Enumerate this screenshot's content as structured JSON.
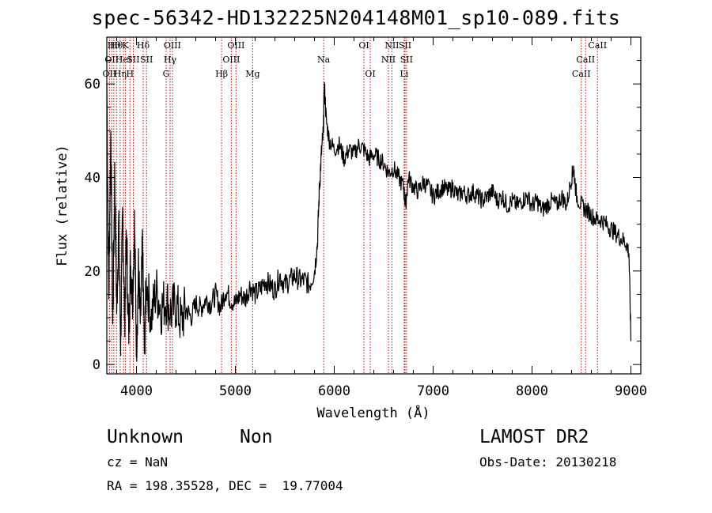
{
  "chart_data": {
    "type": "line",
    "title": "spec-56342-HD132225N204148M01_sp10-089.fits",
    "xlabel": "Wavelength (Å)",
    "ylabel": "Flux (relative)",
    "xlim": [
      3700,
      9100
    ],
    "ylim": [
      -2,
      70
    ],
    "x_ticks": [
      4000,
      5000,
      6000,
      7000,
      8000,
      9000
    ],
    "x_tick_labels": [
      "4000",
      "5000",
      "6000",
      "7000",
      "8000",
      "9000"
    ],
    "y_ticks": [
      0,
      20,
      40,
      60
    ],
    "y_tick_labels": [
      "0",
      "20",
      "40",
      "60"
    ],
    "series": [
      {
        "type": "line",
        "color": "#000000",
        "x": [
          3700,
          3720,
          3740,
          3760,
          3780,
          3800,
          3820,
          3840,
          3860,
          3880,
          3900,
          3920,
          3940,
          3960,
          3980,
          4000,
          4020,
          4040,
          4060,
          4080,
          4100,
          4150,
          4200,
          4250,
          4300,
          4350,
          4400,
          4450,
          4500,
          4550,
          4600,
          4650,
          4700,
          4750,
          4800,
          4850,
          4900,
          4950,
          5000,
          5050,
          5100,
          5150,
          5200,
          5250,
          5300,
          5350,
          5400,
          5450,
          5500,
          5550,
          5600,
          5650,
          5700,
          5750,
          5800,
          5830,
          5850,
          5870,
          5890,
          5900,
          5920,
          5950,
          6000,
          6050,
          6100,
          6150,
          6200,
          6250,
          6300,
          6350,
          6400,
          6450,
          6500,
          6550,
          6600,
          6650,
          6700,
          6720,
          6750,
          6800,
          6850,
          6900,
          6950,
          7000,
          7050,
          7100,
          7150,
          7200,
          7250,
          7300,
          7350,
          7400,
          7450,
          7500,
          7550,
          7600,
          7650,
          7700,
          7750,
          7800,
          7850,
          7900,
          7950,
          8000,
          8050,
          8100,
          8150,
          8200,
          8250,
          8300,
          8350,
          8400,
          8420,
          8450,
          8500,
          8550,
          8600,
          8650,
          8700,
          8750,
          8800,
          8850,
          8900,
          8950,
          8980,
          9000
        ],
        "y": [
          60,
          15,
          50,
          8,
          40,
          12,
          30,
          5,
          32,
          10,
          28,
          6,
          22,
          14,
          30,
          4,
          20,
          8,
          25,
          3,
          18,
          10,
          16,
          12,
          14,
          11,
          13,
          9,
          12,
          10,
          13,
          12,
          14,
          13,
          15,
          12,
          16,
          14,
          13,
          15,
          14,
          17,
          15,
          16,
          18,
          17,
          16,
          19,
          17,
          18,
          19,
          18,
          18,
          17,
          20,
          26,
          38,
          45,
          50,
          60,
          52,
          48,
          46,
          47,
          44,
          46,
          45,
          47,
          46,
          44,
          45,
          44,
          43,
          41,
          42,
          40,
          38,
          34,
          40,
          38,
          37,
          39,
          38,
          36,
          37,
          38,
          37,
          38,
          36,
          37,
          36,
          37,
          36,
          35,
          36,
          37,
          35,
          36,
          34,
          35,
          34,
          35,
          36,
          34,
          35,
          33,
          34,
          35,
          34,
          36,
          34,
          40,
          42,
          36,
          34,
          33,
          32,
          31,
          31,
          30,
          29,
          28,
          27,
          26,
          24,
          5
        ]
      }
    ],
    "line_markers": [
      {
        "w": 3727,
        "label": "OII",
        "row": 2
      },
      {
        "w": 3750,
        "label": "OII",
        "row": 1
      },
      {
        "w": 3771,
        "label": "Hθ",
        "row": 0
      },
      {
        "w": 3798,
        "label": "Hθ",
        "row": 0
      },
      {
        "w": 3835,
        "label": "Hη",
        "row": 2
      },
      {
        "w": 3869,
        "label": "HeI",
        "row": 1
      },
      {
        "w": 3889,
        "label": "K",
        "row": 0
      },
      {
        "w": 3934,
        "label": "H",
        "row": 2
      },
      {
        "w": 3968,
        "label": "SII",
        "row": 1
      },
      {
        "w": 4068,
        "label": "Hδ",
        "row": 0
      },
      {
        "w": 4102,
        "label": "SII",
        "row": 1
      },
      {
        "w": 4300,
        "label": "G",
        "row": 2
      },
      {
        "w": 4340,
        "label": "Hγ",
        "row": 1
      },
      {
        "w": 4363,
        "label": "OIII",
        "row": 0
      },
      {
        "w": 4861,
        "label": "Hβ",
        "row": 2
      },
      {
        "w": 4959,
        "label": "OIII",
        "row": 1
      },
      {
        "w": 5007,
        "label": "OIII",
        "row": 0
      },
      {
        "w": 5175,
        "label": "Mg",
        "row": 2
      },
      {
        "w": 5893,
        "label": "Na",
        "row": 1
      },
      {
        "w": 6300,
        "label": "OI",
        "row": 0
      },
      {
        "w": 6364,
        "label": "OI",
        "row": 2
      },
      {
        "w": 6548,
        "label": "NII",
        "row": 1
      },
      {
        "w": 6583,
        "label": "NII",
        "row": 0
      },
      {
        "w": 6707,
        "label": "Li",
        "row": 2
      },
      {
        "w": 6716,
        "label": "SII",
        "row": 0
      },
      {
        "w": 6731,
        "label": "SII",
        "row": 1
      },
      {
        "w": 8498,
        "label": "CaII",
        "row": 2
      },
      {
        "w": 8542,
        "label": "CaII",
        "row": 1
      },
      {
        "w": 8662,
        "label": "CaII",
        "row": 0
      }
    ]
  },
  "info": {
    "class": "Unknown",
    "subclass": "Non",
    "survey": "LAMOST DR2",
    "cz": "cz = NaN",
    "obs_date": "Obs-Date: 20130218",
    "coords": "RA = 198.35528, DEC =  19.77004"
  }
}
